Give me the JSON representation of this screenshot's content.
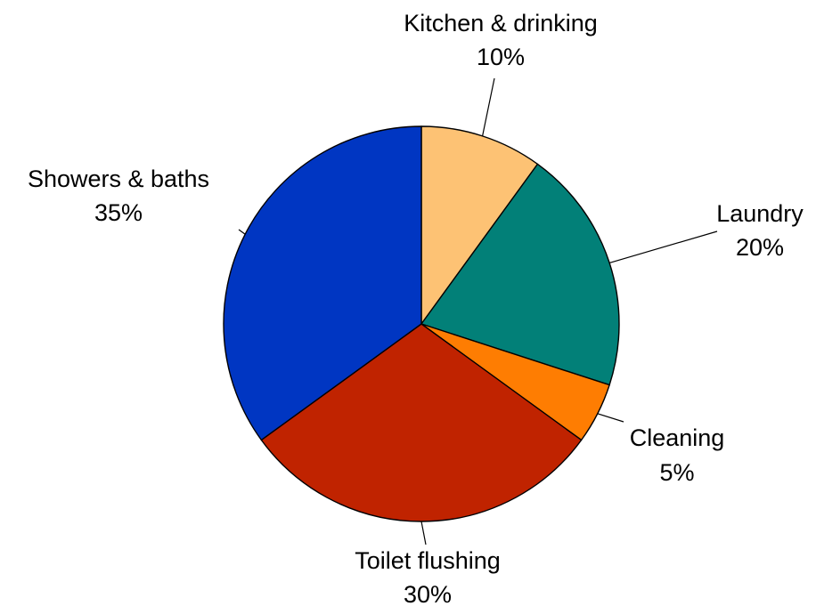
{
  "chart_data": {
    "type": "pie",
    "title": "",
    "unit": "%",
    "start_angle_deg": 0,
    "direction": "clockwise",
    "legend": "none",
    "slices": [
      {
        "label": "Kitchen & drinking",
        "value": 10,
        "value_label": "10%",
        "color": "#FDC274"
      },
      {
        "label": "Laundry",
        "value": 20,
        "value_label": "20%",
        "color": "#028078"
      },
      {
        "label": "Cleaning",
        "value": 5,
        "value_label": "5%",
        "color": "#FE7D02"
      },
      {
        "label": "Toilet flushing",
        "value": 30,
        "value_label": "30%",
        "color": "#C02300"
      },
      {
        "label": "Showers & baths",
        "value": 35,
        "value_label": "35%",
        "color": "#0036C2"
      }
    ]
  }
}
